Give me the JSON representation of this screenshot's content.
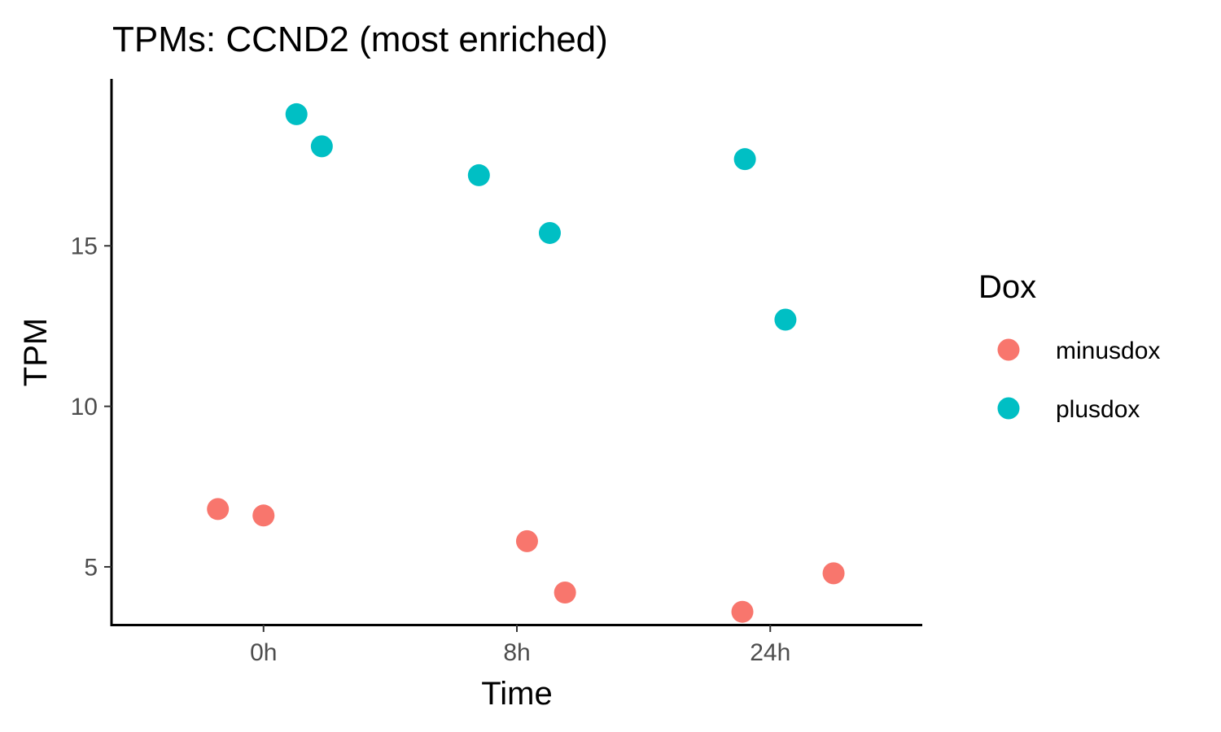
{
  "chart_data": {
    "type": "scatter",
    "title": "TPMs: CCND2 (most enriched)",
    "xlabel": "Time",
    "ylabel": "TPM",
    "x_categories": [
      "0h",
      "8h",
      "24h"
    ],
    "x_type": "categorical-jittered",
    "ylim": [
      3.2,
      20.2
    ],
    "yticks": [
      5,
      10,
      15
    ],
    "grid": false,
    "legend": {
      "title": "Dox",
      "position": "right"
    },
    "series": [
      {
        "name": "minusdox",
        "color": "#F8766D",
        "points": [
          {
            "x": "0h",
            "jitter": -0.18,
            "y": 6.8
          },
          {
            "x": "0h",
            "jitter": 0.0,
            "y": 6.6
          },
          {
            "x": "8h",
            "jitter": 0.04,
            "y": 5.8
          },
          {
            "x": "8h",
            "jitter": 0.19,
            "y": 4.2
          },
          {
            "x": "24h",
            "jitter": -0.11,
            "y": 3.6
          },
          {
            "x": "24h",
            "jitter": 0.25,
            "y": 4.8
          }
        ]
      },
      {
        "name": "plusdox",
        "color": "#00BFC4",
        "points": [
          {
            "x": "0h",
            "jitter": 0.13,
            "y": 19.1
          },
          {
            "x": "0h",
            "jitter": 0.23,
            "y": 18.1
          },
          {
            "x": "8h",
            "jitter": -0.15,
            "y": 17.2
          },
          {
            "x": "8h",
            "jitter": 0.13,
            "y": 15.4
          },
          {
            "x": "24h",
            "jitter": -0.1,
            "y": 17.7
          },
          {
            "x": "24h",
            "jitter": 0.06,
            "y": 12.7
          }
        ]
      }
    ]
  }
}
